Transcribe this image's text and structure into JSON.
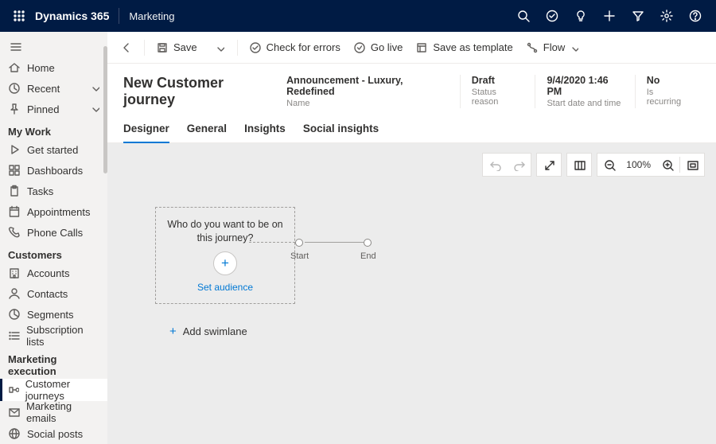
{
  "brand": {
    "product": "Dynamics 365",
    "area": "Marketing"
  },
  "topbar_icons": [
    "search",
    "task-check",
    "lightbulb",
    "plus",
    "funnel",
    "gear",
    "help"
  ],
  "commandbar": {
    "back": true,
    "save_label": "Save",
    "items": [
      {
        "icon": "check-circle",
        "label": "Check for errors"
      },
      {
        "icon": "go-live",
        "label": "Go live"
      },
      {
        "icon": "save-template",
        "label": "Save as template"
      },
      {
        "icon": "flow",
        "label": "Flow",
        "chevron": true
      }
    ]
  },
  "header": {
    "title": "New Customer journey",
    "meta": [
      {
        "value": "Announcement - Luxury, Redefined",
        "label": "Name"
      },
      {
        "value": "Draft",
        "label": "Status reason"
      },
      {
        "value": "9/4/2020 1:46 PM",
        "label": "Start date and time"
      },
      {
        "value": "No",
        "label": "Is recurring"
      }
    ]
  },
  "tabs": [
    "Designer",
    "General",
    "Insights",
    "Social insights"
  ],
  "tabs_active_index": 0,
  "sidebar": {
    "top": [
      {
        "icon": "home",
        "label": "Home"
      },
      {
        "icon": "clock",
        "label": "Recent",
        "chevron": true
      },
      {
        "icon": "pin",
        "label": "Pinned",
        "chevron": true
      }
    ],
    "groups": [
      {
        "title": "My Work",
        "items": [
          {
            "icon": "play",
            "label": "Get started"
          },
          {
            "icon": "grid",
            "label": "Dashboards"
          },
          {
            "icon": "clipboard",
            "label": "Tasks"
          },
          {
            "icon": "calendar",
            "label": "Appointments"
          },
          {
            "icon": "phone",
            "label": "Phone Calls"
          }
        ]
      },
      {
        "title": "Customers",
        "items": [
          {
            "icon": "building",
            "label": "Accounts"
          },
          {
            "icon": "person",
            "label": "Contacts"
          },
          {
            "icon": "segments",
            "label": "Segments"
          },
          {
            "icon": "list",
            "label": "Subscription lists"
          }
        ]
      },
      {
        "title": "Marketing execution",
        "items": [
          {
            "icon": "journey",
            "label": "Customer journeys",
            "active": true
          },
          {
            "icon": "mail",
            "label": "Marketing emails"
          },
          {
            "icon": "globe",
            "label": "Social posts"
          }
        ]
      }
    ]
  },
  "canvas": {
    "background": "#ececec",
    "toolbar": {
      "zoom_label": "100%"
    },
    "audience": {
      "question": "Who do you want to be on this journey?",
      "link_label": "Set audience"
    },
    "nodes": {
      "start": "Start",
      "end": "End"
    },
    "add_swimlane_label": "Add swimlane"
  },
  "colors": {
    "accent": "#0078d4",
    "topbar": "#001b44",
    "canvas_bg": "#ececec"
  }
}
